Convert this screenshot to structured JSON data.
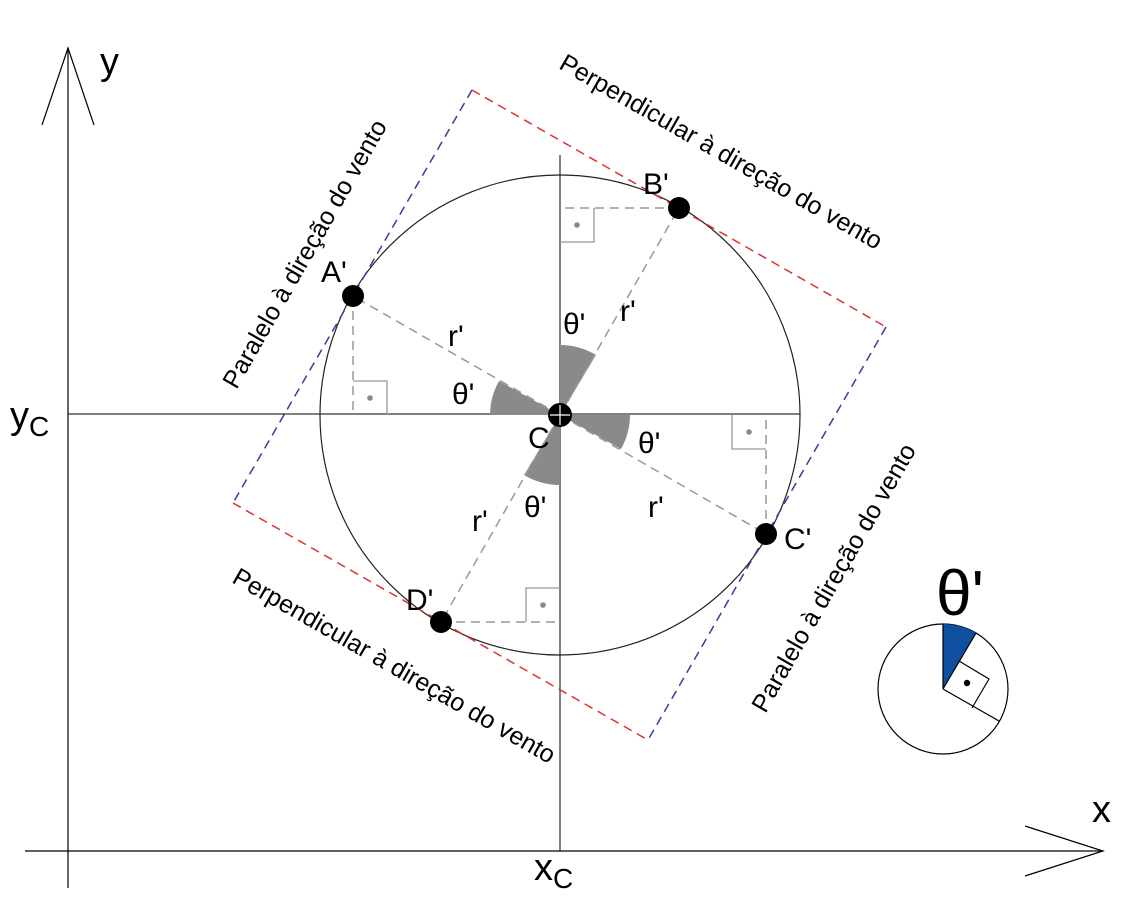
{
  "axes": {
    "x_label": "x",
    "y_label": "y",
    "xc_label": "x",
    "xc_sub": "C",
    "yc_label": "y",
    "yc_sub": "C"
  },
  "center_label": "C",
  "points": {
    "a": "A'",
    "b": "B'",
    "c": "C'",
    "d": "D'"
  },
  "radius_label": "r'",
  "angle_label": "θ'",
  "edge_labels": {
    "perpendicular_top": "Perpendicular à direção do vento",
    "perpendicular_bottom": "Perpendicular à direção do vento",
    "parallel_left": "Paralelo à direção do vento",
    "parallel_right": "Paralelo à direção do vento"
  },
  "inset": {
    "angle_label": "θ'"
  },
  "colors": {
    "parallel_edges": "#3a3aa0",
    "perpendicular_edges": "#e03030",
    "angle_wedge": "#8a8a8a",
    "inset_wedge": "#0f4fa0",
    "construction": "#999999"
  }
}
